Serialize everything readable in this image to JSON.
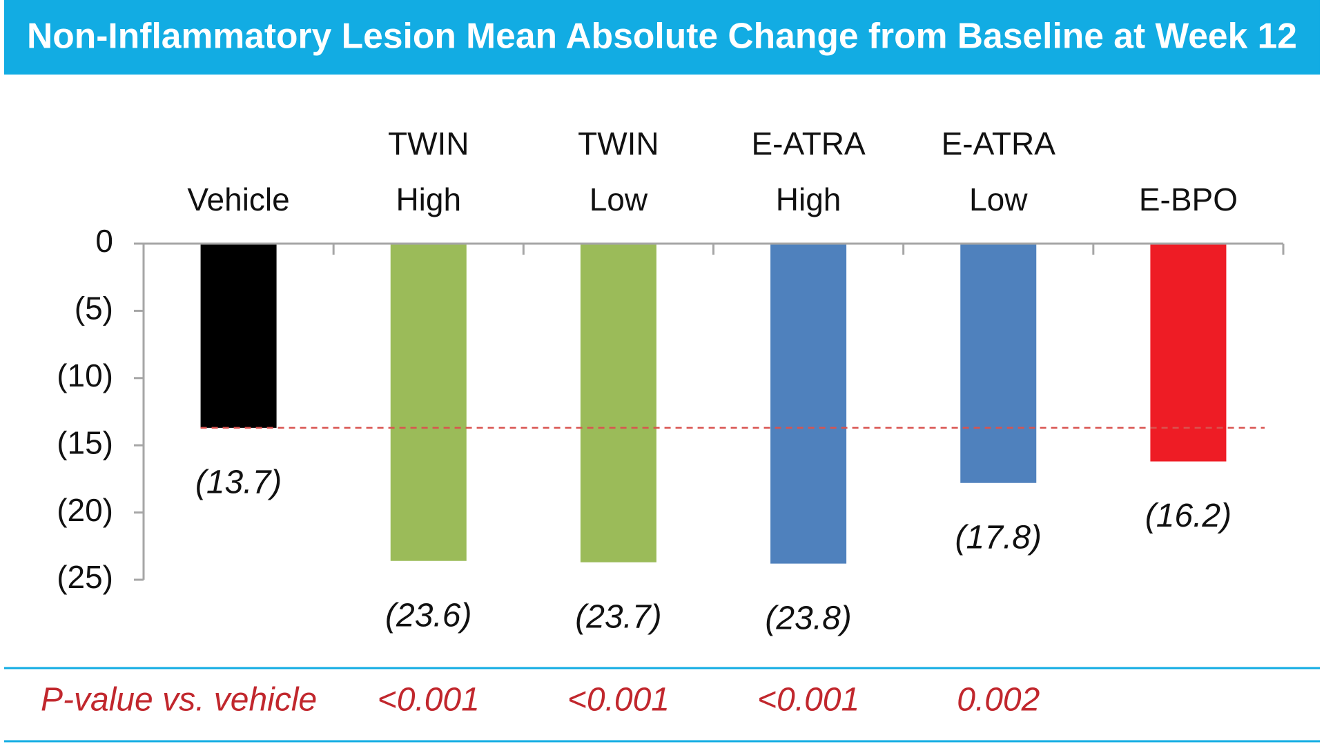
{
  "chart_data": {
    "type": "bar",
    "title": "Non-Inflammatory Lesion Mean Absolute Change from Baseline at Week 12",
    "categories": [
      "Vehicle",
      "TWIN High",
      "TWIN Low",
      "E-ATRA High",
      "E-ATRA Low",
      "E-BPO"
    ],
    "values": [
      -13.7,
      -23.6,
      -23.7,
      -23.8,
      -17.8,
      -16.2
    ],
    "value_labels": [
      "(13.7)",
      "(23.6)",
      "(23.7)",
      "(23.8)",
      "(17.8)",
      "(16.2)"
    ],
    "colors": [
      "#000000",
      "#9bbb59",
      "#9bbb59",
      "#4f81bd",
      "#4f81bd",
      "#ee1c25"
    ],
    "ylim": [
      -25,
      0
    ],
    "yticks": [
      0,
      {
        "value": -5,
        "label": "(5)"
      },
      {
        "value": -10,
        "label": "(10)"
      },
      {
        "value": -15,
        "label": "(15)"
      },
      {
        "value": -20,
        "label": "(20)"
      },
      {
        "value": -25,
        "label": "(25)"
      }
    ],
    "p_value_label": "P-value vs. vehicle",
    "p_values": [
      "<0.001",
      "<0.001",
      "<0.001",
      "0.002",
      null
    ],
    "title_color": "#12ace3",
    "p_value_color": "#c1272d"
  }
}
